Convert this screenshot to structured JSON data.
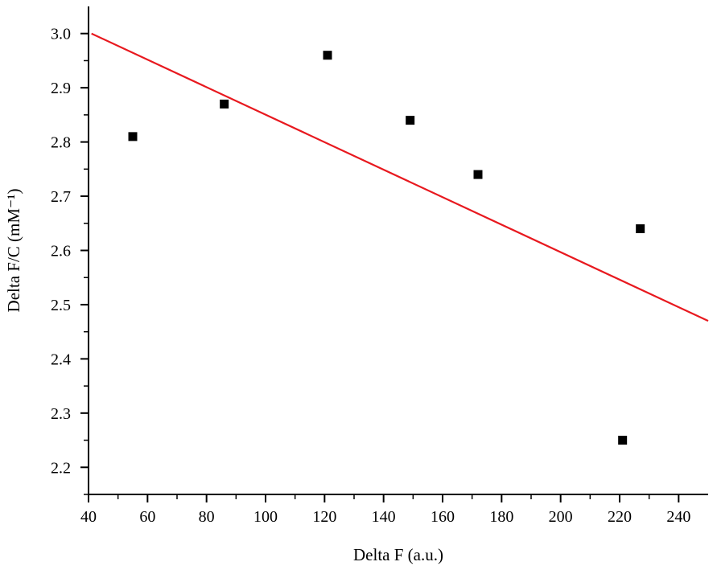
{
  "chart_data": {
    "type": "scatter",
    "title": "",
    "xlabel": "Delta F (a.u.)",
    "ylabel": "Delta F/C (mM⁻¹)",
    "xlim": [
      40,
      250
    ],
    "ylim": [
      2.15,
      3.05
    ],
    "x_ticks": [
      40,
      60,
      80,
      100,
      120,
      140,
      160,
      180,
      200,
      220,
      240
    ],
    "x_tick_labels": [
      "40",
      "60",
      "80",
      "100",
      "120",
      "140",
      "160",
      "180",
      "200",
      "220",
      "240"
    ],
    "y_ticks": [
      2.2,
      2.3,
      2.4,
      2.5,
      2.6,
      2.7,
      2.8,
      2.9,
      3.0
    ],
    "y_tick_labels": [
      "2.2",
      "2.3",
      "2.4",
      "2.5",
      "2.6",
      "2.7",
      "2.8",
      "2.9",
      "3.0"
    ],
    "grid": false,
    "legend": "none",
    "series": [
      {
        "marker": "square",
        "color": "#000000",
        "points": [
          {
            "x": 55,
            "y": 2.81
          },
          {
            "x": 86,
            "y": 2.87
          },
          {
            "x": 121,
            "y": 2.96
          },
          {
            "x": 149,
            "y": 2.84
          },
          {
            "x": 172,
            "y": 2.74
          },
          {
            "x": 221,
            "y": 2.25
          },
          {
            "x": 227,
            "y": 2.64
          }
        ]
      }
    ],
    "fit_line": {
      "color": "#e8191f",
      "x": [
        41,
        250
      ],
      "y": [
        3.0,
        2.47
      ]
    }
  }
}
